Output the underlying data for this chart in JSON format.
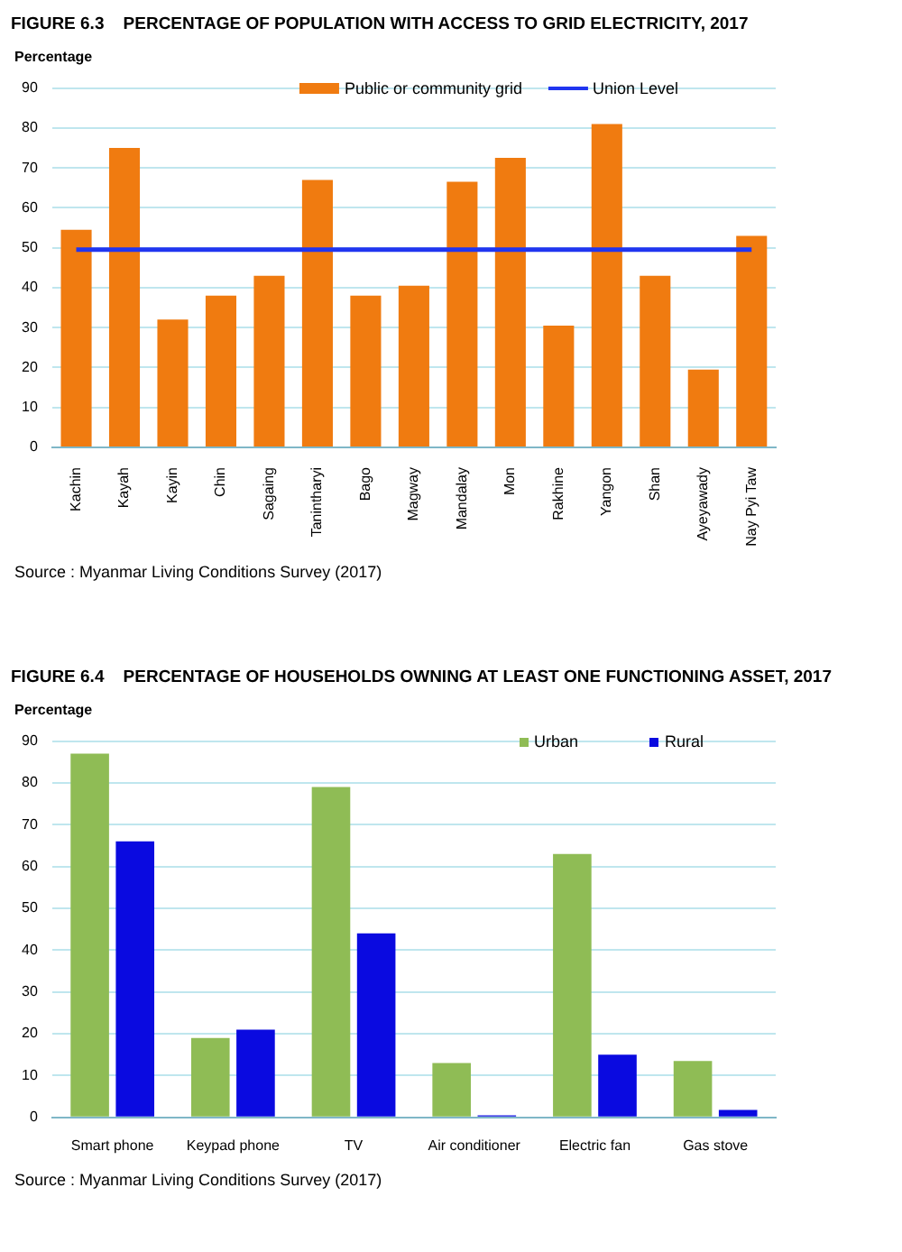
{
  "chart_data": [
    {
      "type": "bar",
      "title": "FIGURE 6.3    PERCENTAGE OF POPULATION WITH ACCESS TO GRID ELECTRICITY, 2017",
      "ylabel": "Percentage",
      "categories": [
        "Kachin",
        "Kayah",
        "Kayin",
        "Chin",
        "Sagaing",
        "Tanintharyi",
        "Bago",
        "Magway",
        "Mandalay",
        "Mon",
        "Rakhine",
        "Yangon",
        "Shan",
        "Ayeyawady",
        "Nay Pyi Taw"
      ],
      "series": [
        {
          "name": "Public or community grid",
          "color": "#f07b10",
          "values": [
            54.5,
            75,
            32,
            38,
            43,
            67,
            38,
            40.5,
            66.5,
            72.5,
            30.5,
            81,
            43,
            19.5,
            53
          ]
        },
        {
          "name": "Union Level",
          "type": "line",
          "color": "#2035f0",
          "values": [
            49.5,
            49.5,
            49.5,
            49.5,
            49.5,
            49.5,
            49.5,
            49.5,
            49.5,
            49.5,
            49.5,
            49.5,
            49.5,
            49.5,
            49.5
          ]
        }
      ],
      "ylim": [
        0,
        90
      ],
      "yticks": [
        0,
        10,
        20,
        30,
        40,
        50,
        60,
        70,
        80,
        90
      ],
      "grid": "y",
      "legend": "top",
      "marker": "none",
      "annotations": [
        "Source : Myanmar Living Conditions Survey (2017)"
      ]
    },
    {
      "type": "bar",
      "title": "FIGURE 6.4    PERCENTAGE OF HOUSEHOLDS OWNING AT LEAST ONE FUNCTIONING ASSET, 2017",
      "ylabel": "Percentage",
      "categories": [
        "Smart phone",
        "Keypad phone",
        "TV",
        "Air conditioner",
        "Electric fan",
        "Gas stove"
      ],
      "series": [
        {
          "name": "Urban",
          "color": "#8fbc55",
          "values": [
            87,
            19,
            79,
            13,
            63,
            13.5
          ]
        },
        {
          "name": "Rural",
          "color": "#0a0ae0",
          "values": [
            66,
            21,
            44,
            0.5,
            15,
            1.8
          ]
        }
      ],
      "ylim": [
        0,
        90
      ],
      "yticks": [
        0,
        10,
        20,
        30,
        40,
        50,
        60,
        70,
        80,
        90
      ],
      "grid": "y",
      "legend": "top right",
      "annotations": [
        "Source : Myanmar Living Conditions Survey (2017)"
      ]
    }
  ]
}
